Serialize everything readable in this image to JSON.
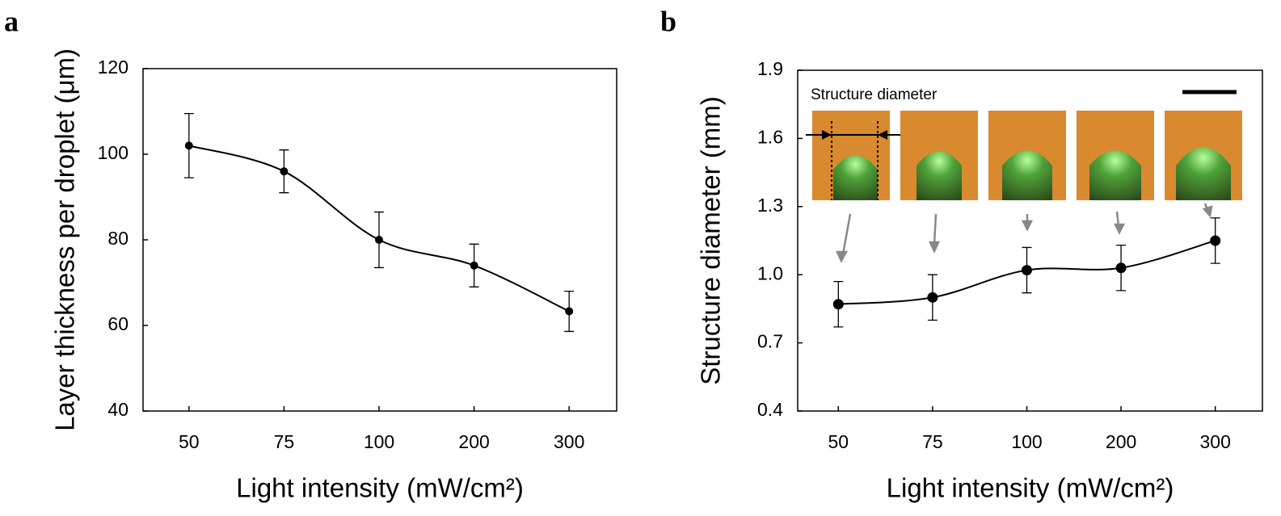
{
  "chart_data": [
    {
      "type": "line",
      "panel_label": "a",
      "x_label": "Light intensity (mW/cm²)",
      "y_label": "Layer thickness per droplet (μm)",
      "categories": [
        "50",
        "75",
        "100",
        "200",
        "300"
      ],
      "values": [
        102,
        96,
        80,
        74,
        63.3
      ],
      "errors": [
        7.5,
        5,
        6.5,
        5,
        4.7
      ],
      "color": "#000000",
      "ylim": [
        40,
        120
      ],
      "yticks": [
        40,
        60,
        80,
        100,
        120
      ]
    },
    {
      "type": "line",
      "panel_label": "b",
      "x_label": "Light intensity (mW/cm²)",
      "y_label": "Structure diameter (mm)",
      "annotation": "Structure diameter",
      "categories": [
        "50",
        "75",
        "100",
        "200",
        "300"
      ],
      "values": [
        0.87,
        0.9,
        1.02,
        1.03,
        1.15
      ],
      "errors": [
        0.1,
        0.1,
        0.1,
        0.1,
        0.1
      ],
      "color": "#000000",
      "ylim": [
        0.4,
        1.9
      ],
      "yticks": [
        0.4,
        0.7,
        {
          "value": 1,
          "label": "1.0"
        },
        1.3,
        1.6,
        1.9
      ]
    }
  ]
}
